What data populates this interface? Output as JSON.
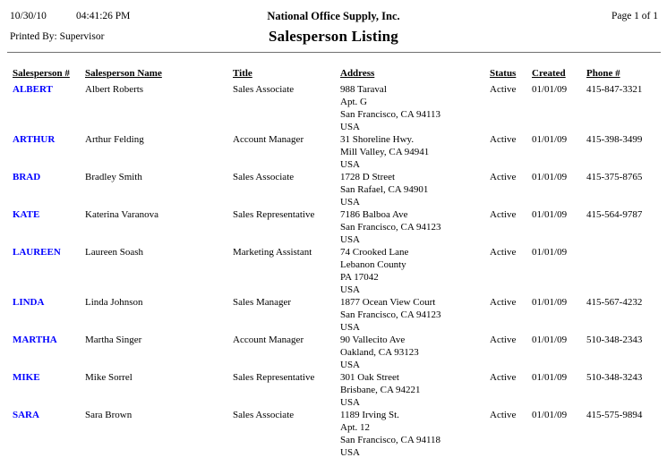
{
  "page_header": {
    "date": "10/30/10",
    "time": "04:41:26 PM",
    "printed_by": "Printed By: Supervisor",
    "company": "National Office Supply, Inc.",
    "report_title": "Salesperson Listing",
    "page_info": "Page 1 of 1"
  },
  "colors": {
    "code_blue": "#0000ff",
    "text": "#000000",
    "rule_gray": "#707070"
  },
  "table": {
    "columns": [
      "Salesperson #",
      "Salesperson Name",
      "Title",
      "Address",
      "Status",
      "Created",
      "Phone #"
    ],
    "rows": [
      {
        "code": "ALBERT",
        "name": "Albert Roberts",
        "title": "Sales Associate",
        "address_lines": [
          "988 Taraval",
          "Apt. G",
          "San Francisco, CA 94113",
          "USA"
        ],
        "status": "Active",
        "created": "01/01/09",
        "phone": "415-847-3321"
      },
      {
        "code": "ARTHUR",
        "name": "Arthur Felding",
        "title": "Account Manager",
        "address_lines": [
          "31 Shoreline Hwy.",
          "Mill Valley, CA 94941",
          "USA"
        ],
        "status": "Active",
        "created": "01/01/09",
        "phone": "415-398-3499"
      },
      {
        "code": "BRAD",
        "name": "Bradley Smith",
        "title": "Sales Associate",
        "address_lines": [
          "1728 D Street",
          "San Rafael, CA 94901",
          "USA"
        ],
        "status": "Active",
        "created": "01/01/09",
        "phone": "415-375-8765"
      },
      {
        "code": "KATE",
        "name": "Katerina Varanova",
        "title": "Sales Representative",
        "address_lines": [
          "7186 Balboa Ave",
          "San Francisco, CA 94123",
          "USA"
        ],
        "status": "Active",
        "created": "01/01/09",
        "phone": "415-564-9787"
      },
      {
        "code": "LAUREEN",
        "name": "Laureen Soash",
        "title": "Marketing Assistant",
        "address_lines": [
          "74 Crooked Lane",
          "Lebanon County",
          "PA 17042",
          "USA"
        ],
        "status": "Active",
        "created": "01/01/09",
        "phone": ""
      },
      {
        "code": "LINDA",
        "name": "Linda Johnson",
        "title": "Sales Manager",
        "address_lines": [
          "1877 Ocean View Court",
          "San Francisco, CA 94123",
          "USA"
        ],
        "status": "Active",
        "created": "01/01/09",
        "phone": "415-567-4232"
      },
      {
        "code": "MARTHA",
        "name": "Martha Singer",
        "title": "Account Manager",
        "address_lines": [
          "90 Vallecito Ave",
          "Oakland, CA 93123",
          "USA"
        ],
        "status": "Active",
        "created": "01/01/09",
        "phone": "510-348-2343"
      },
      {
        "code": "MIKE",
        "name": "Mike Sorrel",
        "title": "Sales Representative",
        "address_lines": [
          "301 Oak Street",
          "Brisbane, CA 94221",
          "USA"
        ],
        "status": "Active",
        "created": "01/01/09",
        "phone": "510-348-3243"
      },
      {
        "code": "SARA",
        "name": "Sara Brown",
        "title": "Sales Associate",
        "address_lines": [
          "1189 Irving St.",
          "Apt. 12",
          "San Francisco, CA 94118",
          "USA"
        ],
        "status": "Active",
        "created": "01/01/09",
        "phone": "415-575-9894"
      }
    ]
  }
}
